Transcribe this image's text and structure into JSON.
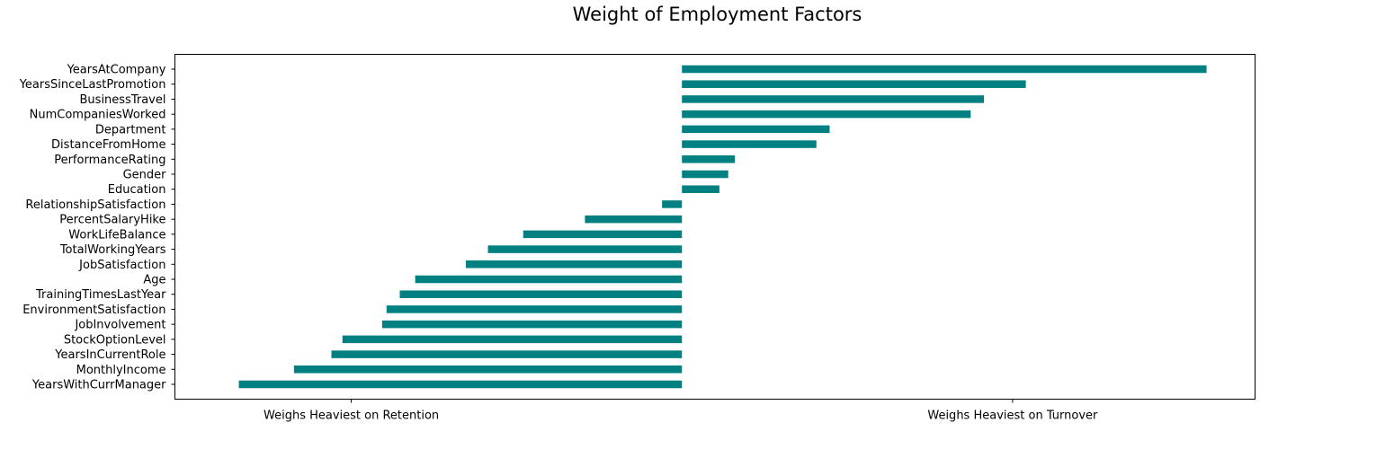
{
  "chart_data": {
    "type": "bar",
    "orientation": "horizontal",
    "title": "Weight of Employment Factors",
    "xlabel": "",
    "ylabel": "",
    "xlim": [
      -2.3,
      2.6
    ],
    "x_ticks": [
      {
        "value": -1.5,
        "label": "Weighs Heaviest on Retention"
      },
      {
        "value": 1.5,
        "label": "Weighs Heaviest on Turnover"
      }
    ],
    "bar_color": "#008080",
    "grid": false,
    "categories": [
      "YearsAtCompany",
      "YearsSinceLastPromotion",
      "BusinessTravel",
      "NumCompaniesWorked",
      "Department",
      "DistanceFromHome",
      "PerformanceRating",
      "Gender",
      "Education",
      "RelationshipSatisfaction",
      "PercentSalaryHike",
      "WorkLifeBalance",
      "TotalWorkingYears",
      "JobSatisfaction",
      "Age",
      "TrainingTimesLastYear",
      "EnvironmentSatisfaction",
      "JobInvolvement",
      "StockOptionLevel",
      "YearsInCurrentRole",
      "MonthlyIncome",
      "YearsWithCurrManager"
    ],
    "values": [
      2.38,
      1.56,
      1.37,
      1.31,
      0.67,
      0.61,
      0.24,
      0.21,
      0.17,
      -0.09,
      -0.44,
      -0.72,
      -0.88,
      -0.98,
      -1.21,
      -1.28,
      -1.34,
      -1.36,
      -1.54,
      -1.59,
      -1.76,
      -2.01
    ]
  }
}
